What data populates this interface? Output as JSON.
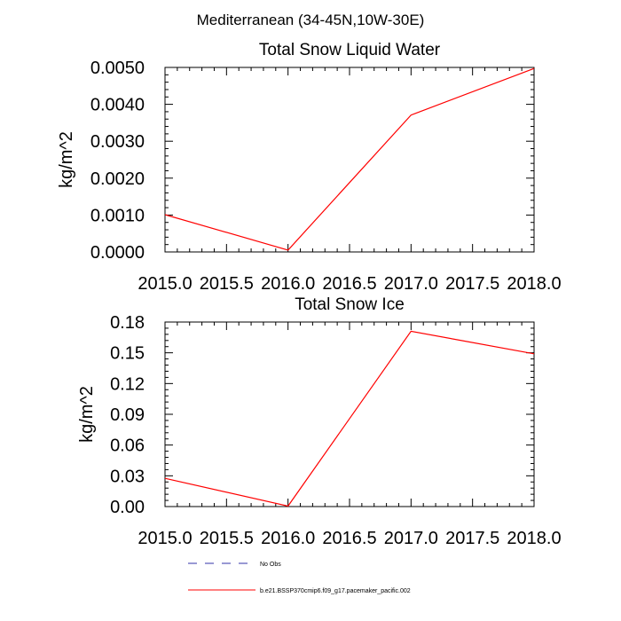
{
  "figure": {
    "title": "Mediterranean (34-45N,10W-30E)"
  },
  "chart_data": [
    {
      "type": "line",
      "title": "Total Snow Liquid Water",
      "xlabel": "",
      "ylabel": "kg/m^2",
      "xlim": [
        2015.0,
        2018.0
      ],
      "ylim": [
        0.0,
        0.005
      ],
      "x_ticks": [
        "2015.0",
        "2015.5",
        "2016.0",
        "2016.5",
        "2017.0",
        "2017.5",
        "2018.0"
      ],
      "y_ticks": [
        "0.0000",
        "0.0010",
        "0.0020",
        "0.0030",
        "0.0040",
        "0.0050"
      ],
      "grid": false,
      "series": [
        {
          "name": "b.e21.BSSP370cmip6.f09_g17.pacemaker_pacific.002",
          "color": "#ff0000",
          "x": [
            2015.0,
            2016.0,
            2017.0,
            2018.0
          ],
          "y": [
            0.00101,
            5e-05,
            0.00371,
            0.00497
          ]
        }
      ]
    },
    {
      "type": "line",
      "title": "Total Snow Ice",
      "xlabel": "",
      "ylabel": "kg/m^2",
      "xlim": [
        2015.0,
        2018.0
      ],
      "ylim": [
        0.0,
        0.18
      ],
      "x_ticks": [
        "2015.0",
        "2015.5",
        "2016.0",
        "2016.5",
        "2017.0",
        "2017.5",
        "2018.0"
      ],
      "y_ticks": [
        "0.00",
        "0.03",
        "0.06",
        "0.09",
        "0.12",
        "0.15",
        "0.18"
      ],
      "grid": false,
      "series": [
        {
          "name": "b.e21.BSSP370cmip6.f09_g17.pacemaker_pacific.002",
          "color": "#ff0000",
          "x": [
            2015.0,
            2016.0,
            2017.0,
            2018.0
          ],
          "y": [
            0.0275,
            0.0005,
            0.171,
            0.149
          ]
        }
      ]
    }
  ],
  "legend": {
    "position": "bottom",
    "items": [
      {
        "label": "No Obs",
        "color": "#3333aa",
        "style": "dashed"
      },
      {
        "label": "b.e21.BSSP370cmip6.f09_g17.pacemaker_pacific.002",
        "color": "#ff0000",
        "style": "solid"
      }
    ]
  }
}
